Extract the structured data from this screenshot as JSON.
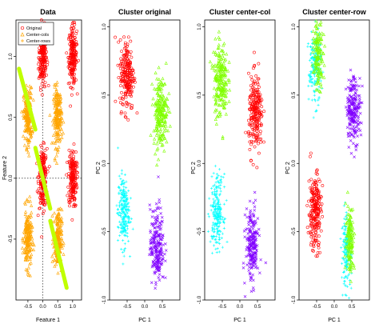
{
  "colors": {
    "red": "#ff0000",
    "orange": "#ffa500",
    "green": "#80ff00",
    "cyan": "#00ffff",
    "purple": "#8000ff",
    "lime_line": "#c0ff00",
    "guide": "#000000"
  },
  "chart_data": [
    {
      "type": "scatter",
      "title": "Data",
      "xlabel": "Feature 1",
      "ylabel": "Feature 2",
      "xlim": [
        -0.9,
        1.3
      ],
      "ylim": [
        -1.0,
        1.3
      ],
      "xticks": [
        -0.5,
        0.0,
        0.5,
        1.0
      ],
      "yticks": [
        -0.5,
        0.0,
        0.5,
        1.0
      ],
      "xtick_labels": [
        "-0.5",
        "0.0",
        "0.5",
        "1.0"
      ],
      "ytick_labels": [
        "-0.5",
        "0.0",
        "0.5",
        "1.0"
      ],
      "legend": {
        "placement": "top-left",
        "entries": [
          {
            "label": "Original",
            "color": "red",
            "marker": "circle"
          },
          {
            "label": "Center-cols",
            "color": "orange",
            "marker": "triangle"
          },
          {
            "label": "Center-rows",
            "color": "orange",
            "marker": "plus"
          }
        ]
      },
      "guides": {
        "vline_x": 0.0,
        "hline_y": 0.0
      },
      "clusters": [
        {
          "color": "red",
          "marker": "circle",
          "center": [
            0.0,
            1.0
          ],
          "spread": [
            0.07,
            0.12
          ],
          "n": 200
        },
        {
          "color": "red",
          "marker": "circle",
          "center": [
            1.0,
            1.0
          ],
          "spread": [
            0.07,
            0.12
          ],
          "n": 200
        },
        {
          "color": "red",
          "marker": "circle",
          "center": [
            0.0,
            0.0
          ],
          "spread": [
            0.07,
            0.12
          ],
          "n": 200
        },
        {
          "color": "red",
          "marker": "circle",
          "center": [
            1.0,
            0.0
          ],
          "spread": [
            0.07,
            0.12
          ],
          "n": 200
        },
        {
          "color": "orange",
          "marker": "triangle",
          "center": [
            -0.5,
            0.5
          ],
          "spread": [
            0.07,
            0.12
          ],
          "n": 200
        },
        {
          "color": "orange",
          "marker": "triangle",
          "center": [
            0.5,
            0.5
          ],
          "spread": [
            0.07,
            0.12
          ],
          "n": 200
        },
        {
          "color": "orange",
          "marker": "triangle",
          "center": [
            -0.5,
            -0.5
          ],
          "spread": [
            0.07,
            0.12
          ],
          "n": 200
        },
        {
          "color": "orange",
          "marker": "triangle",
          "center": [
            0.5,
            -0.5
          ],
          "spread": [
            0.07,
            0.12
          ],
          "n": 200
        },
        {
          "color": "lime_line",
          "marker": "plus",
          "center": [
            -0.25,
            0.5
          ],
          "spread": [
            0.02,
            0.02
          ],
          "n": 0
        }
      ],
      "lines": [
        {
          "color": "lime_line",
          "from": [
            -0.8,
            0.9
          ],
          "to": [
            -0.25,
            0.4
          ]
        },
        {
          "color": "lime_line",
          "from": [
            -0.25,
            0.25
          ],
          "to": [
            0.25,
            -0.25
          ]
        },
        {
          "color": "lime_line",
          "from": [
            0.25,
            -0.35
          ],
          "to": [
            0.8,
            -0.9
          ]
        }
      ]
    },
    {
      "type": "scatter",
      "title": "Cluster original",
      "xlabel": "PC 1",
      "ylabel": "PC 2",
      "xlim": [
        -1.0,
        1.0
      ],
      "ylim": [
        -1.0,
        1.05
      ],
      "xticks": [
        -0.5,
        0.0,
        0.5
      ],
      "yticks": [
        -1.0,
        -0.5,
        0.0,
        0.5,
        1.0
      ],
      "xtick_labels": [
        "-0.5",
        "0.0",
        "0.5"
      ],
      "ytick_labels": [
        "-1.0",
        "-0.5",
        "0.0",
        "0.5",
        "1.0"
      ],
      "clusters": [
        {
          "color": "red",
          "marker": "circle",
          "center": [
            -0.5,
            0.65
          ],
          "spread": [
            0.1,
            0.13
          ],
          "n": 220
        },
        {
          "color": "green",
          "marker": "triangle",
          "center": [
            0.45,
            0.38
          ],
          "spread": [
            0.1,
            0.13
          ],
          "n": 220
        },
        {
          "color": "cyan",
          "marker": "plus",
          "center": [
            -0.6,
            -0.35
          ],
          "spread": [
            0.08,
            0.13
          ],
          "n": 220
        },
        {
          "color": "purple",
          "marker": "cross",
          "center": [
            0.35,
            -0.6
          ],
          "spread": [
            0.1,
            0.14
          ],
          "n": 220
        }
      ]
    },
    {
      "type": "scatter",
      "title": "Cluster center-col",
      "xlabel": "PC 1",
      "ylabel": "PC 2",
      "xlim": [
        -1.0,
        1.0
      ],
      "ylim": [
        -1.0,
        1.05
      ],
      "xticks": [
        -0.5,
        0.0,
        0.5
      ],
      "yticks": [
        -1.0,
        -0.5,
        0.0,
        0.5,
        1.0
      ],
      "xtick_labels": [
        "-0.5",
        "0.0",
        "0.5"
      ],
      "ytick_labels": [
        "-1.0",
        "-0.5",
        "0.0",
        "0.5",
        "1.0"
      ],
      "clusters": [
        {
          "color": "green",
          "marker": "triangle",
          "center": [
            -0.55,
            0.62
          ],
          "spread": [
            0.1,
            0.14
          ],
          "n": 220
        },
        {
          "color": "red",
          "marker": "circle",
          "center": [
            0.45,
            0.35
          ],
          "spread": [
            0.1,
            0.14
          ],
          "n": 220
        },
        {
          "color": "cyan",
          "marker": "plus",
          "center": [
            -0.65,
            -0.35
          ],
          "spread": [
            0.09,
            0.13
          ],
          "n": 220
        },
        {
          "color": "purple",
          "marker": "cross",
          "center": [
            0.35,
            -0.6
          ],
          "spread": [
            0.09,
            0.14
          ],
          "n": 220
        }
      ]
    },
    {
      "type": "scatter",
      "title": "Cluster center-row",
      "xlabel": "PC 1",
      "ylabel": "PC 2",
      "xlim": [
        -1.0,
        1.0
      ],
      "ylim": [
        -1.0,
        1.05
      ],
      "xticks": [
        -0.5,
        0.0,
        0.5
      ],
      "yticks": [
        -1.0,
        -0.5,
        0.0,
        0.5,
        1.0
      ],
      "xtick_labels": [
        "-0.5",
        "0.0",
        "0.5"
      ],
      "ytick_labels": [
        "-1.0",
        "-0.5",
        "0.0",
        "0.5",
        "1.0"
      ],
      "clusters": [
        {
          "color": "cyan",
          "marker": "plus",
          "center": [
            -0.55,
            0.7
          ],
          "spread": [
            0.09,
            0.13
          ],
          "n": 180
        },
        {
          "color": "green",
          "marker": "triangle",
          "center": [
            -0.45,
            0.8
          ],
          "spread": [
            0.07,
            0.12
          ],
          "n": 140
        },
        {
          "color": "purple",
          "marker": "cross",
          "center": [
            0.55,
            0.4
          ],
          "spread": [
            0.1,
            0.12
          ],
          "n": 220
        },
        {
          "color": "red",
          "marker": "circle",
          "center": [
            -0.55,
            -0.35
          ],
          "spread": [
            0.09,
            0.14
          ],
          "n": 220
        },
        {
          "color": "cyan",
          "marker": "plus",
          "center": [
            0.35,
            -0.65
          ],
          "spread": [
            0.07,
            0.13
          ],
          "n": 160
        },
        {
          "color": "green",
          "marker": "triangle",
          "center": [
            0.45,
            -0.55
          ],
          "spread": [
            0.06,
            0.12
          ],
          "n": 140
        }
      ]
    }
  ]
}
